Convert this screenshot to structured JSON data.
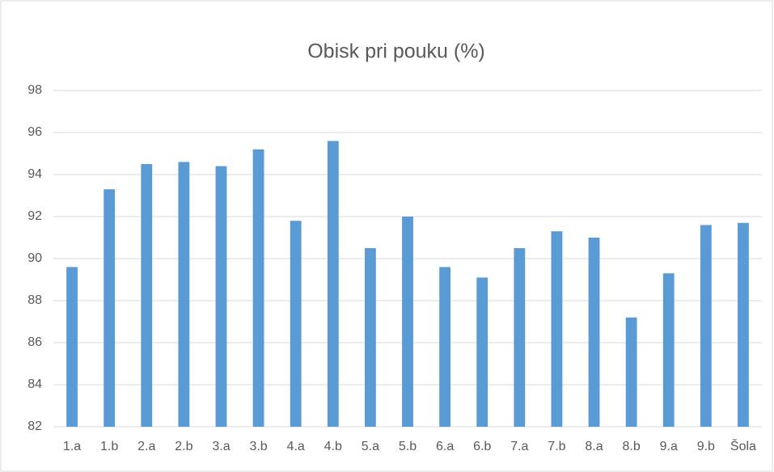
{
  "chart_data": {
    "type": "bar",
    "title": "Obisk pri pouku (%)",
    "categories": [
      "1.a",
      "1.b",
      "2.a",
      "2.b",
      "3.a",
      "3.b",
      "4.a",
      "4.b",
      "5.a",
      "5.b",
      "6.a",
      "6.b",
      "7.a",
      "7.b",
      "8.a",
      "8.b",
      "9.a",
      "9.b",
      "Šola"
    ],
    "values": [
      89.6,
      93.3,
      94.5,
      94.6,
      94.4,
      95.2,
      91.8,
      95.6,
      90.5,
      92.0,
      89.6,
      89.1,
      90.5,
      91.3,
      91.0,
      87.2,
      89.3,
      91.6,
      91.7
    ],
    "color": "#5b9bd5",
    "ylim": [
      82,
      98
    ],
    "yticks": [
      82,
      84,
      86,
      88,
      90,
      92,
      94,
      96,
      98
    ],
    "grid": true
  }
}
